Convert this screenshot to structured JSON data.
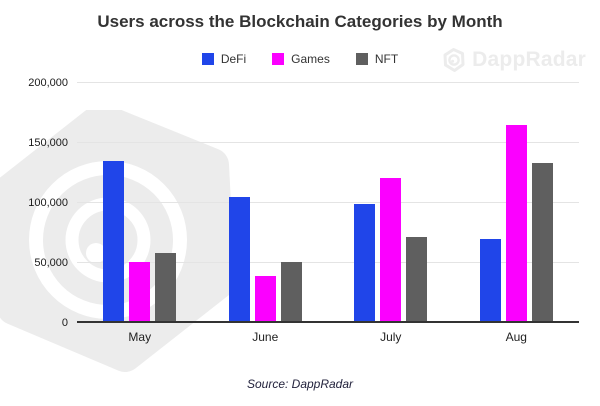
{
  "title": {
    "text": "Users across the Blockchain Categories by Month"
  },
  "legend": {
    "items": [
      {
        "label": "DeFi",
        "color": "#2045e9"
      },
      {
        "label": "Games",
        "color": "#fb00ff"
      },
      {
        "label": "NFT",
        "color": "#5f5f5f"
      }
    ]
  },
  "brand_watermark": {
    "text": "DappRadar"
  },
  "source": {
    "text": "Source: DappRadar"
  },
  "colors": {
    "gridline": "#e4e4e4",
    "baseline": "#333333",
    "watermark": "#ececec"
  },
  "chart_data": {
    "type": "bar",
    "title": "Users across the Blockchain Categories by Month",
    "categories": [
      "May",
      "June",
      "July",
      "Aug"
    ],
    "series": [
      {
        "name": "DeFi",
        "color": "#2045e9",
        "values": [
          135000,
          105000,
          99000,
          70000
        ]
      },
      {
        "name": "Games",
        "color": "#fb00ff",
        "values": [
          51000,
          39000,
          121000,
          165000
        ]
      },
      {
        "name": "NFT",
        "color": "#5f5f5f",
        "values": [
          58000,
          51000,
          72000,
          133000
        ]
      }
    ],
    "xlabel": "",
    "ylabel": "",
    "ylim": [
      0,
      200000
    ],
    "yticks": [
      {
        "value": 0,
        "label": "0"
      },
      {
        "value": 50000,
        "label": "50,000"
      },
      {
        "value": 100000,
        "label": "100,000"
      },
      {
        "value": 150000,
        "label": "150,000"
      },
      {
        "value": 200000,
        "label": "200,000"
      }
    ],
    "grid": true,
    "legend_position": "top",
    "source_note": "Source: DappRadar"
  }
}
